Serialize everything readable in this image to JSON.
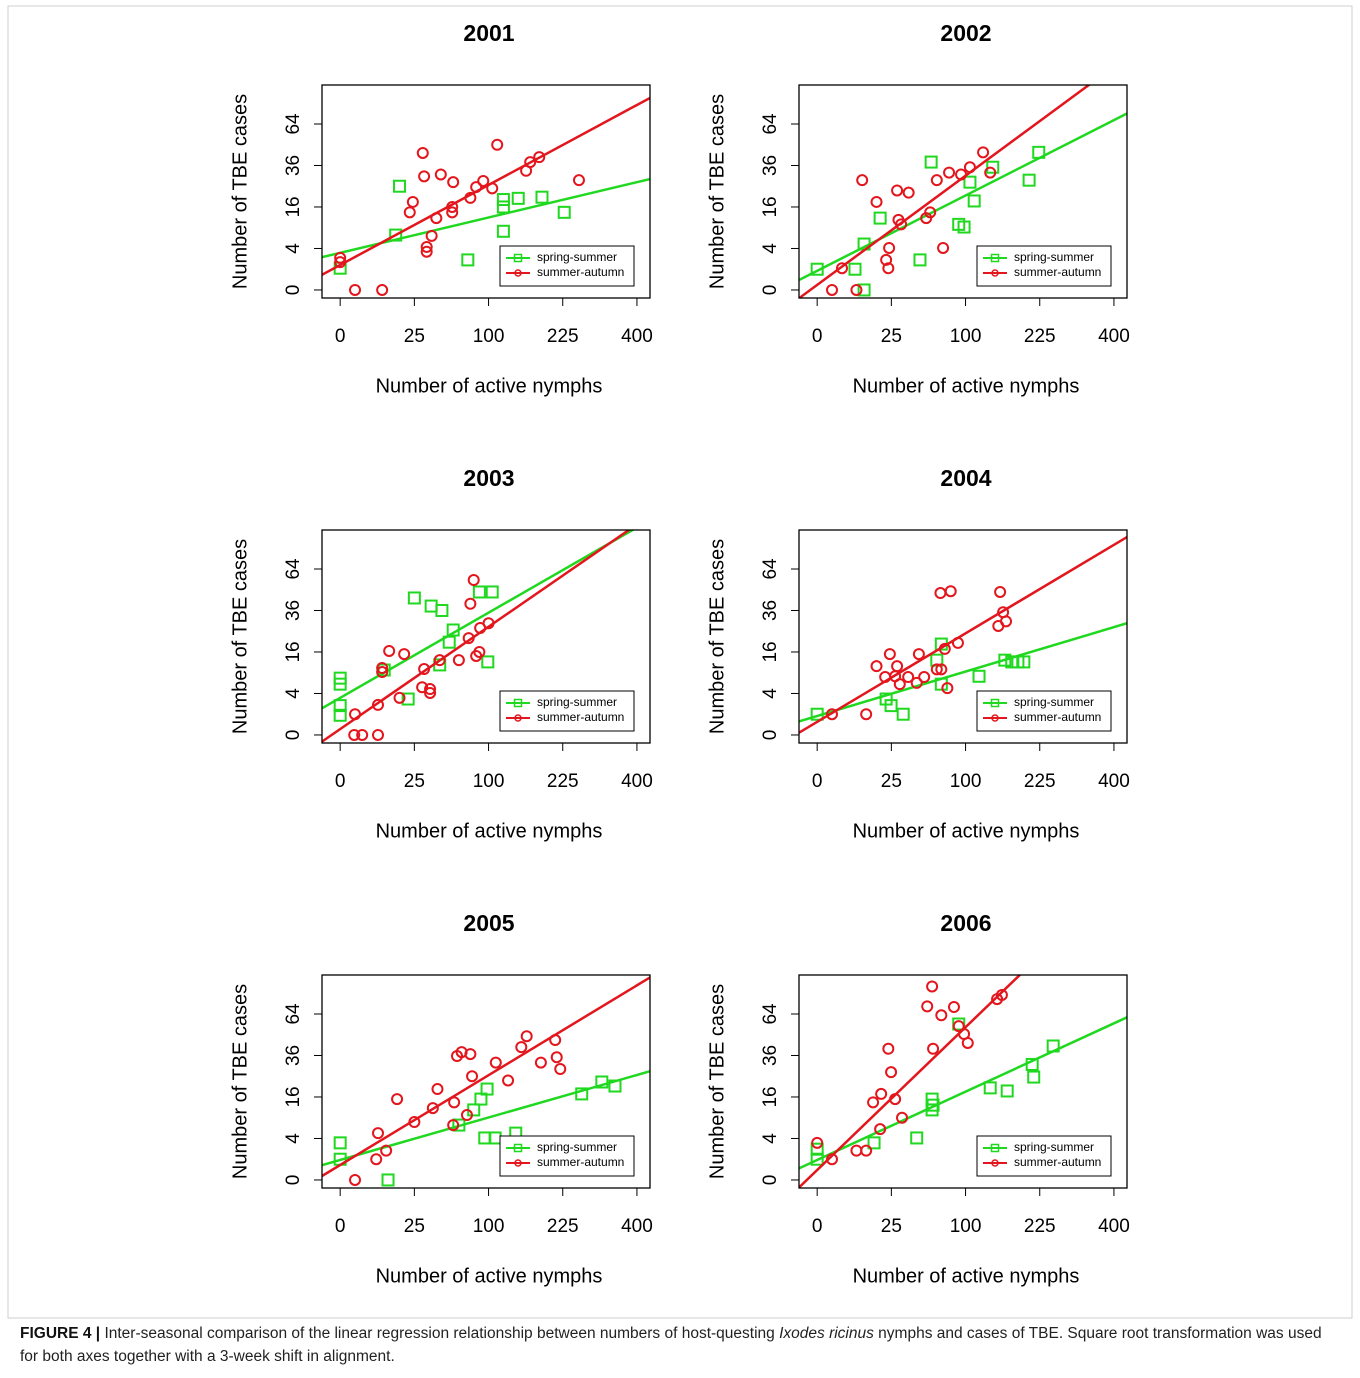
{
  "chart_data": [
    {
      "type": "scatter",
      "title": "2001",
      "xlabel": "Number of active nymphs",
      "ylabel": "Number of TBE cases",
      "scale": "sqrt",
      "legend": "bottomright",
      "xlim": [
        -1.5,
        436
      ],
      "ylim": [
        -0.15,
        97.6
      ],
      "xticks": [
        0,
        25,
        100,
        225,
        400
      ],
      "yticks": [
        0,
        4,
        16,
        36,
        64
      ],
      "series": [
        {
          "name": "spring-summer",
          "color": "#1fd81f",
          "marker": "square",
          "x": [
            0,
            14,
            16,
            74,
            121,
            121,
            121,
            144,
            185,
            228
          ],
          "y": [
            1.1,
            7,
            25,
            2.1,
            8,
            16,
            19,
            19.5,
            20,
            14
          ],
          "fit_x": [
            0,
            400
          ],
          "fit_y": [
            3.2,
            27
          ]
        },
        {
          "name": "summer-autumn",
          "color": "#e3161d",
          "marker": "circle",
          "x": [
            0,
            0,
            1,
            8,
            22,
            24,
            31,
            32,
            34,
            34,
            38,
            42,
            46,
            57,
            57,
            58,
            77,
            84,
            93,
            105,
            112,
            157,
            164,
            180,
            259
          ],
          "y": [
            2.4,
            1.8,
            0,
            0,
            14,
            18,
            43.6,
            30,
            3.4,
            4.3,
            6.8,
            12,
            31,
            14,
            16,
            27,
            19.7,
            24.6,
            27.6,
            24,
            49,
            33,
            38,
            41,
            28
          ],
          "fit_x": [
            0,
            400
          ],
          "fit_y": [
            1.45,
            79.5
          ]
        }
      ]
    },
    {
      "type": "scatter",
      "title": "2002",
      "xlabel": "Number of active nymphs",
      "ylabel": "Number of TBE cases",
      "scale": "sqrt",
      "legend": "bottomright",
      "xlim": [
        -1.5,
        436
      ],
      "ylim": [
        -0.15,
        97.6
      ],
      "xticks": [
        0,
        25,
        100,
        225,
        400
      ],
      "yticks": [
        0,
        4,
        16,
        36,
        64
      ],
      "series": [
        {
          "name": "spring-summer",
          "color": "#1fd81f",
          "marker": "square",
          "x": [
            0,
            6.5,
            10,
            10,
            18,
            59,
            48,
            91,
            98,
            106,
            112,
            140,
            204,
            223
          ],
          "y": [
            1,
            1,
            0,
            4.9,
            12,
            38,
            2.1,
            10,
            9.2,
            27,
            18.4,
            35,
            28,
            44
          ],
          "fit_x": [
            0,
            400
          ],
          "fit_y": [
            0.85,
            67
          ]
        },
        {
          "name": "summer-autumn",
          "color": "#e3161d",
          "marker": "circle",
          "x": [
            1,
            2.8,
            7,
            9.2,
            16,
            21.6,
            23,
            23.5,
            29,
            30,
            32,
            38,
            54,
            58,
            65,
            72,
            79,
            94,
            106,
            125,
            136
          ],
          "y": [
            0,
            1.1,
            0,
            28,
            18,
            2.1,
            1.1,
            4.1,
            23,
            11.4,
            10,
            22,
            12,
            14,
            28,
            4.1,
            32,
            31,
            35,
            44,
            32
          ],
          "fit_x": [
            0,
            400
          ],
          "fit_y": [
            0.06,
            116
          ]
        }
      ]
    },
    {
      "type": "scatter",
      "title": "2003",
      "xlabel": "Number of active nymphs",
      "ylabel": "Number of TBE cases",
      "scale": "sqrt",
      "legend": "bottomright",
      "xlim": [
        -1.5,
        436
      ],
      "ylim": [
        -0.15,
        97.6
      ],
      "xticks": [
        0,
        25,
        100,
        225,
        400
      ],
      "yticks": [
        0,
        4,
        16,
        36,
        64
      ],
      "series": [
        {
          "name": "spring-summer",
          "color": "#1fd81f",
          "marker": "square",
          "x": [
            0,
            0,
            0,
            0,
            8.8,
            21,
            25,
            37.6,
            47,
            45,
            54,
            58,
            88,
            105,
            99
          ],
          "y": [
            7.5,
            6,
            2,
            0.9,
            9.8,
            3,
            43.6,
            38.6,
            36,
            11.4,
            20,
            25.6,
            47.5,
            47.5,
            12.4
          ],
          "fit_x": [
            0,
            400
          ],
          "fit_y": [
            3.2,
            100
          ]
        },
        {
          "name": "summer-autumn",
          "color": "#e3161d",
          "marker": "circle",
          "x": [
            0.9,
            1,
            2.2,
            6.5,
            6.5,
            8,
            8,
            10.9,
            18.6,
            16,
            30.5,
            36.7,
            36.7,
            32,
            45,
            64,
            75,
            77,
            81,
            84,
            88,
            89,
            100
          ],
          "y": [
            0,
            1,
            0,
            0,
            2.1,
            9.2,
            10.4,
            16.4,
            15.2,
            3.2,
            5.3,
            4.9,
            4.1,
            10.1,
            13,
            13,
            21.8,
            40,
            55.8,
            14.5,
            16,
            26.6,
            29
          ],
          "fit_x": [
            0,
            400
          ],
          "fit_y": [
            0.08,
            103
          ]
        }
      ]
    },
    {
      "type": "scatter",
      "title": "2004",
      "xlabel": "Number of active nymphs",
      "ylabel": "Number of TBE cases",
      "scale": "sqrt",
      "legend": "bottomright",
      "xlim": [
        -1.5,
        436
      ],
      "ylim": [
        -0.15,
        97.6
      ],
      "xticks": [
        0,
        25,
        100,
        225,
        400
      ],
      "yticks": [
        0,
        4,
        16,
        36,
        64
      ],
      "series": [
        {
          "name": "spring-summer",
          "color": "#1fd81f",
          "marker": "square",
          "x": [
            0,
            21.6,
            24.8,
            33.6,
            65,
            70,
            70,
            119,
            160,
            172,
            183,
            194
          ],
          "y": [
            1,
            3,
            2,
            1,
            13,
            19.2,
            6,
            8,
            13,
            12.4,
            12.4,
            12.4
          ],
          "fit_x": [
            0,
            400
          ],
          "fit_y": [
            0.84,
            27
          ]
        },
        {
          "name": "summer-autumn",
          "color": "#e3161d",
          "marker": "circle",
          "x": [
            1,
            10.9,
            16,
            21,
            24,
            29,
            27.6,
            31,
            37.6,
            45,
            47,
            52,
            65,
            70,
            69,
            74,
            77,
            81,
            90,
            149,
            152,
            157,
            162
          ],
          "y": [
            1,
            1,
            11,
            7.8,
            15.2,
            11,
            8,
            6,
            7.8,
            6.3,
            15.2,
            7.8,
            10,
            10,
            46.8,
            17.2,
            5.1,
            48,
            19.7,
            27.6,
            47.5,
            35,
            30
          ],
          "fit_x": [
            0,
            400
          ],
          "fit_y": [
            0.4,
            84
          ]
        }
      ]
    },
    {
      "type": "scatter",
      "title": "2005",
      "xlabel": "Number of active nymphs",
      "ylabel": "Number of TBE cases",
      "scale": "sqrt",
      "legend": "bottomright",
      "xlim": [
        -1.5,
        436
      ],
      "ylim": [
        -0.15,
        97.6
      ],
      "xticks": [
        0,
        25,
        100,
        225,
        400
      ],
      "yticks": [
        0,
        4,
        16,
        36,
        64
      ],
      "series": [
        {
          "name": "spring-summer",
          "color": "#1fd81f",
          "marker": "square",
          "x": [
            0,
            0,
            10.4,
            64,
            81,
            90,
            98,
            95,
            109,
            140,
            265,
            311,
            343
          ],
          "y": [
            3.2,
            1,
            0,
            7,
            11.4,
            15.2,
            19.2,
            4.1,
            4.1,
            5.1,
            17.2,
            22.3,
            20.5
          ],
          "fit_x": [
            0,
            400
          ],
          "fit_y": [
            0.93,
            25.6
          ]
        },
        {
          "name": "summer-autumn",
          "color": "#e3161d",
          "marker": "circle",
          "x": [
            1,
            6.5,
            5.9,
            9.6,
            14.7,
            25,
            39,
            43,
            58,
            59,
            62,
            67,
            73,
            77,
            79,
            110,
            128,
            149,
            158,
            183,
            210,
            213,
            220
          ],
          "y": [
            0,
            5.1,
            1,
            2,
            15.2,
            7.8,
            12,
            19.2,
            7,
            14,
            35.7,
            38,
            9.8,
            36.8,
            25,
            32,
            23,
            41,
            48,
            32,
            45.5,
            35,
            28.6
          ],
          "fit_x": [
            0,
            400
          ],
          "fit_y": [
            0.52,
            88
          ]
        }
      ]
    },
    {
      "type": "scatter",
      "title": "2006",
      "xlabel": "Number of active nymphs",
      "ylabel": "Number of TBE cases",
      "scale": "sqrt",
      "legend": "bottomright",
      "xlim": [
        -1.5,
        436
      ],
      "ylim": [
        -0.15,
        97.6
      ],
      "xticks": [
        0,
        25,
        100,
        225,
        400
      ],
      "yticks": [
        0,
        4,
        16,
        36,
        64
      ],
      "series": [
        {
          "name": "spring-summer",
          "color": "#1fd81f",
          "marker": "square",
          "x": [
            0,
            0,
            14.7,
            45,
            60,
            61,
            60,
            91,
            136,
            164,
            210,
            213,
            253
          ],
          "y": [
            1,
            2.2,
            3.2,
            4.1,
            11.4,
            13,
            15.2,
            56.5,
            19.7,
            18.4,
            31,
            24.6,
            41.7
          ],
          "fit_x": [
            0,
            400
          ],
          "fit_y": [
            0.93,
            57
          ]
        },
        {
          "name": "summer-autumn",
          "color": "#e3161d",
          "marker": "circle",
          "x": [
            0,
            1,
            7,
            10.9,
            14.2,
            18.6,
            18,
            23,
            24.8,
            27.6,
            32.7,
            55,
            60,
            61,
            70,
            85,
            91,
            98,
            103,
            147,
            155
          ],
          "y": [
            3.2,
            1,
            2,
            2,
            14,
            17.2,
            6,
            40,
            27,
            15.2,
            9,
            70,
            87,
            40,
            63,
            69.5,
            55,
            49.5,
            43.6,
            76,
            79.5
          ],
          "fit_x": [
            0,
            400
          ],
          "fit_y": [
            0.23,
            203
          ]
        }
      ]
    }
  ],
  "caption": {
    "label": "FIGURE 4 |",
    "text_before": "Inter-seasonal comparison of the linear regression relationship between numbers of host-questing",
    "italic": "Ixodes ricinus",
    "text_after": "nymphs and cases of TBE. Square root transformation was used for both axes together with a 3-week shift in alignment."
  }
}
